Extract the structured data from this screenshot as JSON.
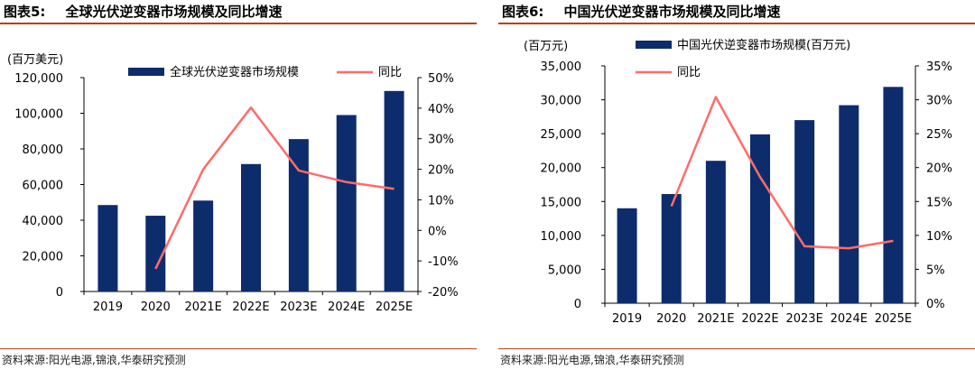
{
  "colors": {
    "bar": "#0d2c6c",
    "line": "#ff6b6b",
    "rule": "#b8401b"
  },
  "charts": [
    {
      "fig_label": "图表5:",
      "title": "全球光伏逆变器市场规模及同比增速",
      "unit": "(百万美元)",
      "source": "资料来源:阳光电源,锦浪,华泰研究预测"
    },
    {
      "fig_label": "图表6:",
      "title": "中国光伏逆变器市场规模及同比增速",
      "unit": "(百万元)",
      "source": "资料来源:阳光电源,锦浪,华泰研究预测"
    }
  ],
  "chart_data": [
    {
      "type": "bar",
      "categories": [
        "2019",
        "2020",
        "2021E",
        "2022E",
        "2023E",
        "2024E",
        "2025E"
      ],
      "series": [
        {
          "name": "全球光伏逆变器市场规模",
          "type": "bar",
          "axis": "left",
          "values": [
            48500,
            42500,
            51000,
            71500,
            85500,
            99000,
            112500
          ]
        },
        {
          "name": "同比",
          "type": "line",
          "axis": "right",
          "values": [
            null,
            -12.6,
            20.0,
            40.2,
            19.6,
            15.8,
            13.6
          ]
        }
      ],
      "y_left": {
        "min": 0,
        "max": 120000,
        "step": 20000,
        "format": "thousands"
      },
      "y_right": {
        "min": -20,
        "max": 50,
        "step": 10,
        "format": "percent"
      },
      "legend_position": "top",
      "grid": false
    },
    {
      "type": "bar",
      "categories": [
        "2019",
        "2020",
        "2021E",
        "2022E",
        "2023E",
        "2024E",
        "2025E"
      ],
      "series": [
        {
          "name": "中国光伏逆变器市场规模(百万元)",
          "type": "bar",
          "axis": "left",
          "values": [
            14000,
            16100,
            21000,
            24900,
            27000,
            29200,
            31900
          ]
        },
        {
          "name": "同比",
          "type": "line",
          "axis": "right",
          "values": [
            null,
            14.3,
            30.4,
            18.6,
            8.4,
            8.1,
            9.2
          ]
        }
      ],
      "y_left": {
        "min": 0,
        "max": 35000,
        "step": 5000,
        "format": "thousands"
      },
      "y_right": {
        "min": 0,
        "max": 35,
        "step": 5,
        "format": "percent"
      },
      "legend_position": "top-left",
      "grid": false
    }
  ]
}
